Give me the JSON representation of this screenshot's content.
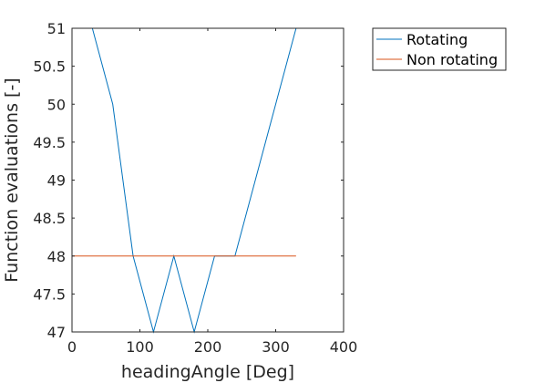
{
  "chart_data": {
    "type": "line",
    "xlabel": "headingAngle [Deg]",
    "ylabel": "Function evaluations [-]",
    "xlim": [
      0,
      400
    ],
    "ylim": [
      47,
      51
    ],
    "xticks": [
      0,
      100,
      200,
      300,
      400
    ],
    "yticks": [
      47,
      47.5,
      48,
      48.5,
      49,
      49.5,
      50,
      50.5,
      51
    ],
    "grid": false,
    "legend_position": "outside-top-right",
    "series": [
      {
        "name": "Rotating",
        "color": "#0072BD",
        "x": [
          0,
          30,
          60,
          90,
          120,
          150,
          180,
          210,
          240,
          270,
          300,
          330
        ],
        "y": [
          51,
          51,
          50,
          48,
          47,
          48,
          47,
          48,
          48,
          49,
          50,
          51
        ]
      },
      {
        "name": "Non rotating",
        "color": "#D95319",
        "x": [
          0,
          30,
          60,
          90,
          120,
          150,
          180,
          210,
          240,
          270,
          300,
          330
        ],
        "y": [
          48,
          48,
          48,
          48,
          48,
          48,
          48,
          48,
          48,
          48,
          48,
          48
        ]
      }
    ]
  }
}
